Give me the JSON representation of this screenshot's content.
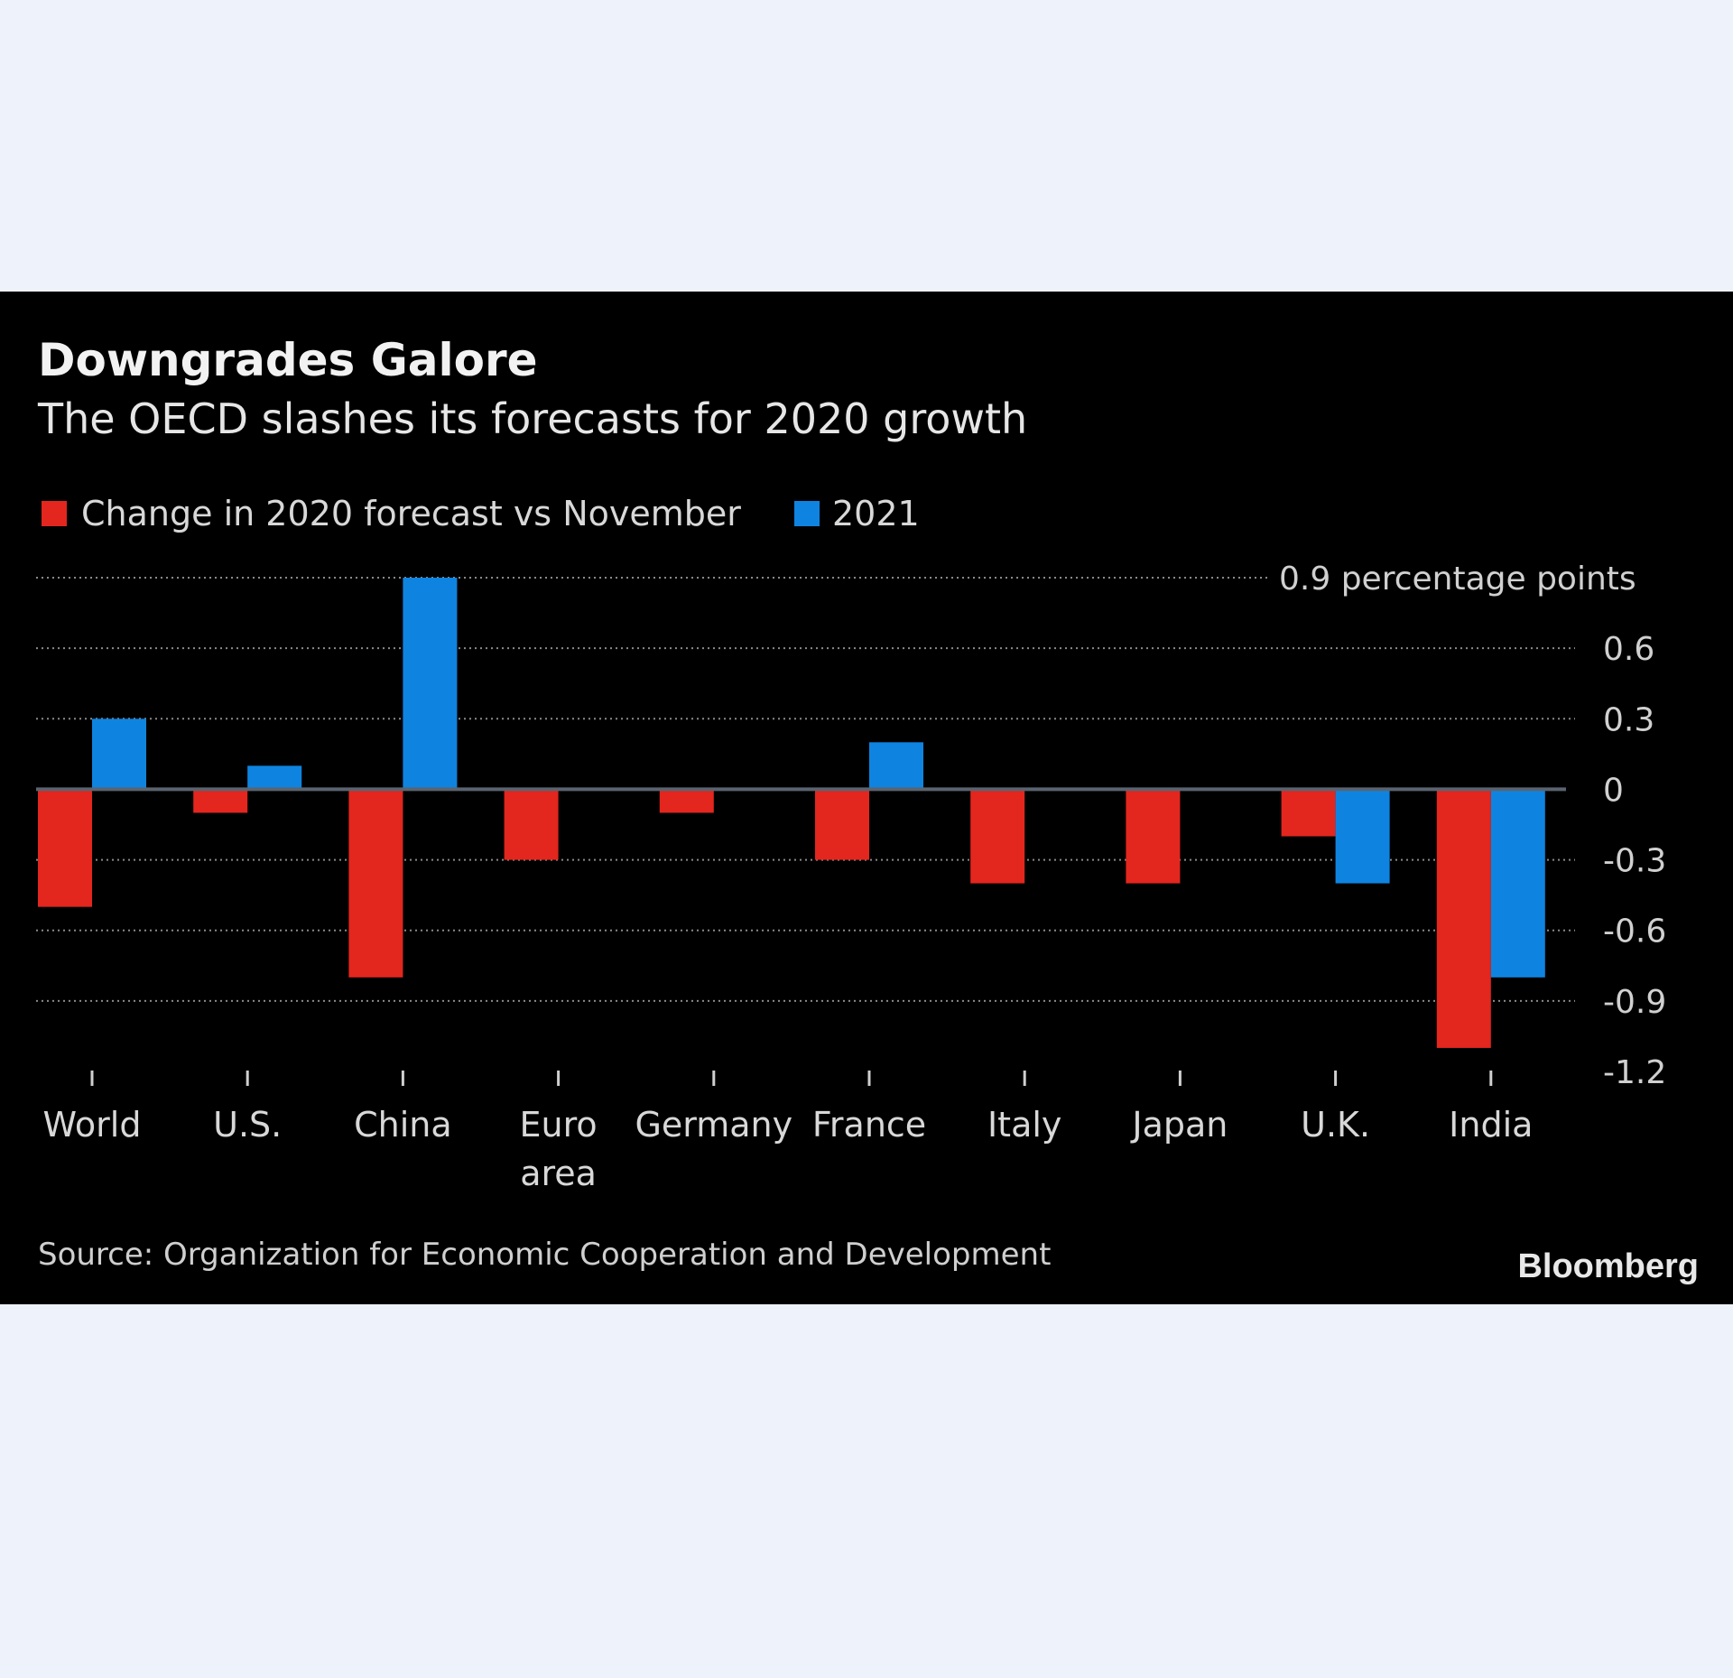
{
  "colors": {
    "page_bg": "#eef2fa",
    "panel_bg": "#000000",
    "series_2020": "#e3261e",
    "series_2021": "#0e84e0"
  },
  "brand": "Bloomberg",
  "chart_data": {
    "type": "bar",
    "title": "Downgrades Galore",
    "subtitle": "The OECD slashes its forecasts for 2020 growth",
    "unit_label": "0.9 percentage points",
    "categories": [
      "World",
      "U.S.",
      "China",
      "Euro area",
      "Germany",
      "France",
      "Italy",
      "Japan",
      "U.K.",
      "India"
    ],
    "category_lines": [
      [
        "World"
      ],
      [
        "U.S."
      ],
      [
        "China"
      ],
      [
        "Euro",
        "area"
      ],
      [
        "Germany"
      ],
      [
        "France"
      ],
      [
        "Italy"
      ],
      [
        "Japan"
      ],
      [
        "U.K."
      ],
      [
        "India"
      ]
    ],
    "series": [
      {
        "name": "Change in 2020 forecast vs November",
        "color": "#e3261e",
        "values": [
          -0.5,
          -0.1,
          -0.8,
          -0.3,
          -0.1,
          -0.3,
          -0.4,
          -0.4,
          -0.2,
          -1.1
        ]
      },
      {
        "name": "2021",
        "color": "#0e84e0",
        "values": [
          0.3,
          0.1,
          0.9,
          0.0,
          0.0,
          0.2,
          0.0,
          0.0,
          -0.4,
          -0.8
        ]
      }
    ],
    "yticks": [
      0.9,
      0.6,
      0.3,
      0,
      -0.3,
      -0.6,
      -0.9,
      -1.2
    ],
    "ytick_labels": [
      "0.9 percentage points",
      "0.6",
      "0.3",
      "0",
      "-0.3",
      "-0.6",
      "-0.9",
      "-1.2"
    ],
    "ylim": [
      -1.2,
      0.9
    ],
    "xlabel": "",
    "ylabel": "percentage points",
    "grid": true,
    "y_axis_position": "right",
    "legend_position": "top-left",
    "source": "Source: Organization for Economic Cooperation and Development"
  }
}
